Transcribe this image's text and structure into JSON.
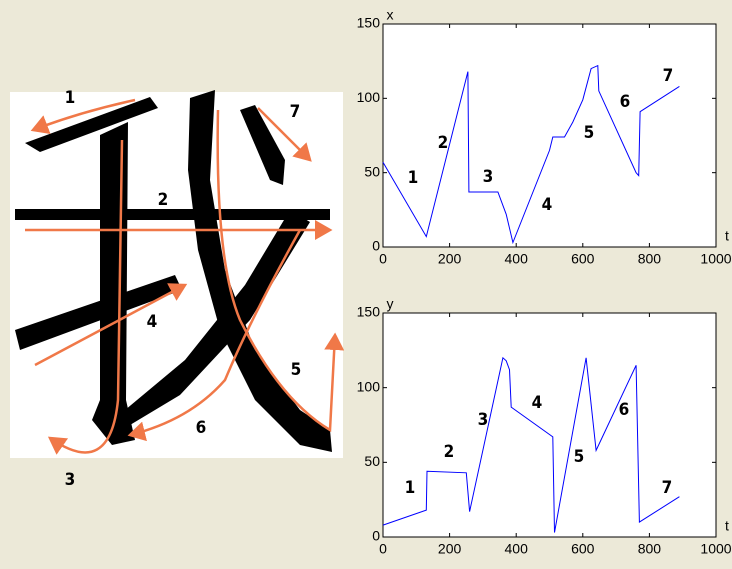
{
  "image": {
    "stroke_labels": [
      "1",
      "2",
      "3",
      "4",
      "5",
      "6",
      "7"
    ]
  },
  "chart_data": [
    {
      "type": "line",
      "y_label": "x",
      "x_label": "t",
      "color": "#0000ff",
      "x": [
        0,
        130,
        255,
        258,
        345,
        370,
        390,
        500,
        510,
        545,
        570,
        600,
        625,
        645,
        648,
        760,
        768,
        772,
        890
      ],
      "values": [
        57,
        7,
        118,
        37,
        37,
        22,
        3,
        65,
        74,
        74,
        84,
        99,
        120,
        122,
        105,
        50,
        48,
        91,
        108
      ],
      "annotations": [
        "1",
        "2",
        "3",
        "4",
        "5",
        "6",
        "7"
      ],
      "xlim": [
        0,
        1000
      ],
      "xticks": [
        0,
        200,
        400,
        600,
        800,
        1000
      ],
      "ylim": [
        0,
        150
      ],
      "yticks": [
        0,
        50,
        100,
        150
      ]
    },
    {
      "type": "line",
      "y_label": "y",
      "x_label": "t",
      "color": "#0000ff",
      "x": [
        0,
        130,
        132,
        250,
        260,
        360,
        370,
        380,
        385,
        510,
        515,
        610,
        640,
        760,
        770,
        890
      ],
      "values": [
        8,
        18,
        44,
        43,
        17,
        120,
        118,
        112,
        87,
        67,
        3,
        120,
        58,
        115,
        10,
        27
      ],
      "annotations": [
        "1",
        "2",
        "3",
        "4",
        "5",
        "6",
        "7"
      ],
      "xlim": [
        0,
        1000
      ],
      "xticks": [
        0,
        200,
        400,
        600,
        800,
        1000
      ],
      "ylim": [
        0,
        150
      ],
      "yticks": [
        0,
        50,
        100,
        150
      ]
    }
  ]
}
